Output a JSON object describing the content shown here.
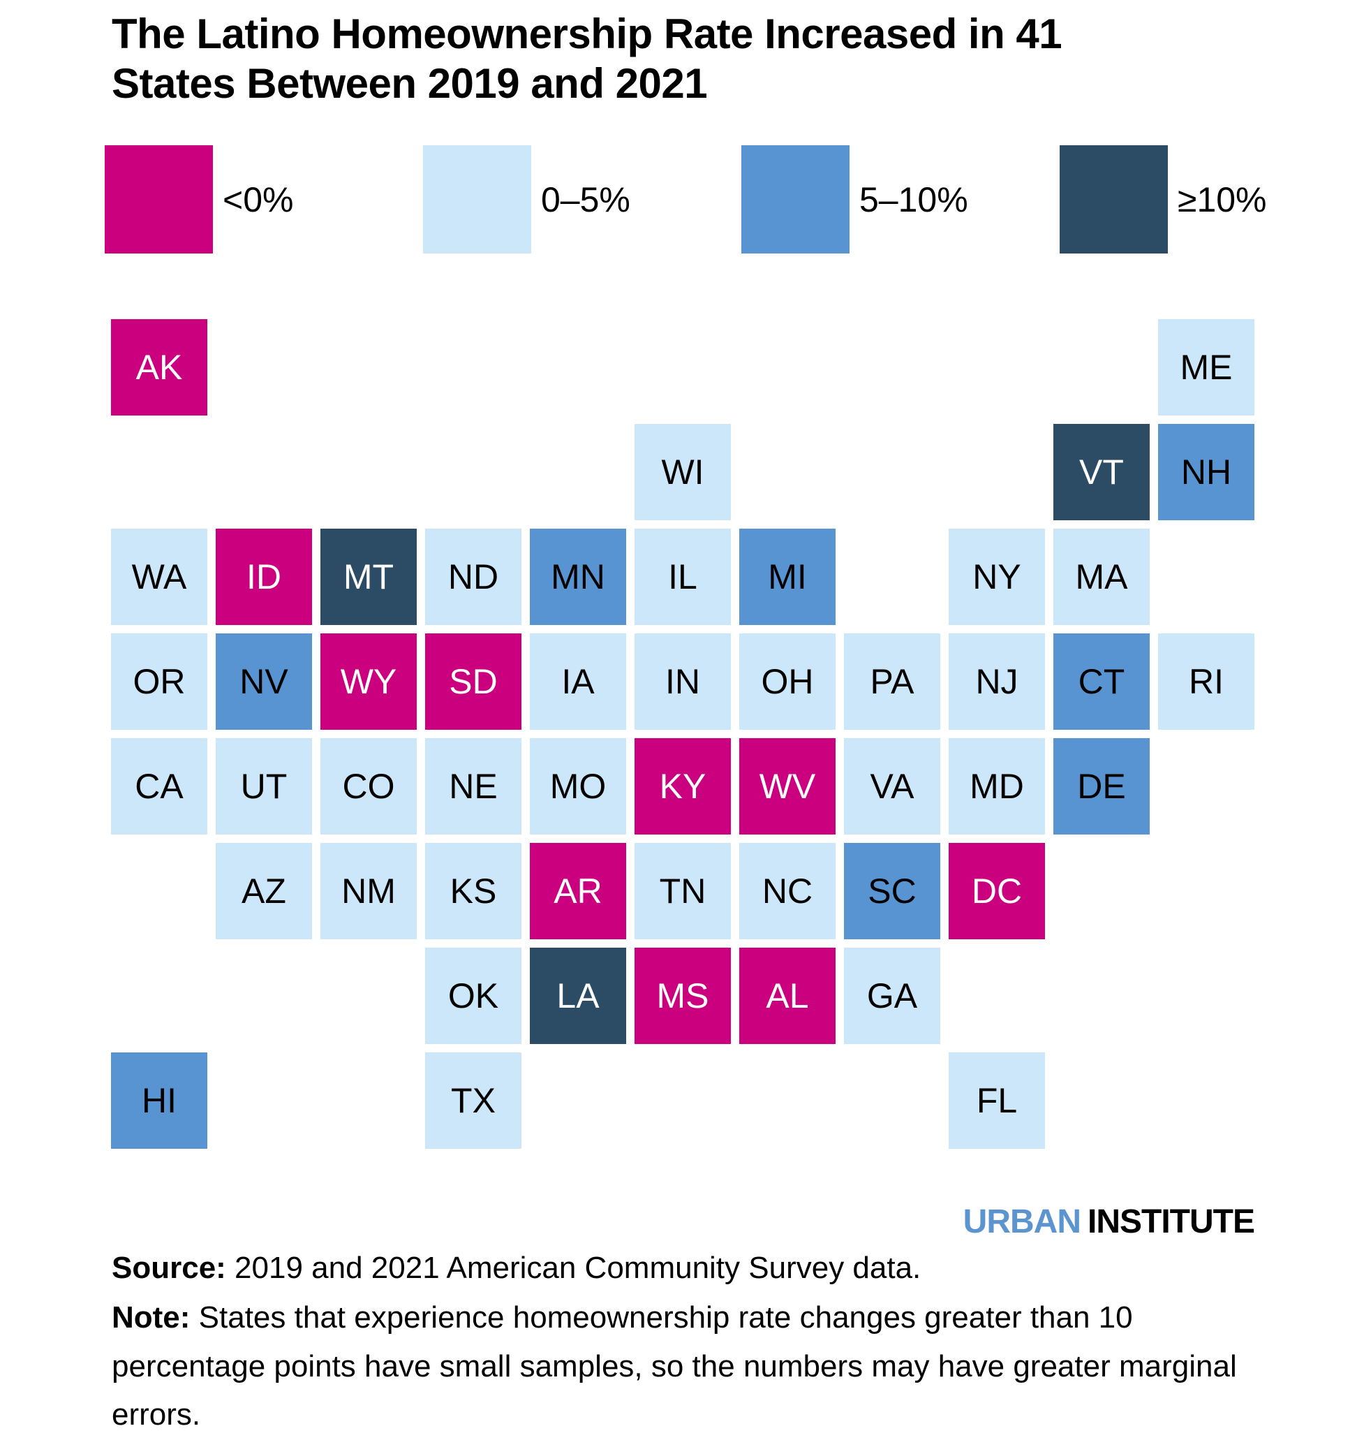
{
  "title": {
    "line1": "The Latino Homeownership Rate Increased in 41",
    "line2": "States Between 2019 and 2021"
  },
  "colors": {
    "neg": {
      "bg": "#CA007E",
      "text": "#FFFFFF"
    },
    "low": {
      "bg": "#CCE7F9",
      "text": "#000000"
    },
    "mid": {
      "bg": "#5894D2",
      "text": "#000000"
    },
    "high": {
      "bg": "#2C4B64",
      "text": "#FFFFFF"
    }
  },
  "chart_data": {
    "type": "heatmap",
    "subtype": "state-tile-grid-map",
    "title": "The Latino Homeownership Rate Increased in 41 States Between 2019 and 2021",
    "legend_position": "top",
    "legend": [
      {
        "label": "<0%",
        "bucket": "neg",
        "color": "#CA007E"
      },
      {
        "label": "0–5%",
        "bucket": "low",
        "color": "#CCE7F9"
      },
      {
        "label": "5–10%",
        "bucket": "mid",
        "color": "#5894D2"
      },
      {
        "label": "≥10%",
        "bucket": "high",
        "color": "#2C4B64"
      }
    ],
    "grid": {
      "columns": 11,
      "rows": 8
    },
    "states": [
      {
        "abbr": "AK",
        "row": 1,
        "col": 1,
        "bucket": "neg"
      },
      {
        "abbr": "ME",
        "row": 1,
        "col": 11,
        "bucket": "low"
      },
      {
        "abbr": "WI",
        "row": 2,
        "col": 6,
        "bucket": "low"
      },
      {
        "abbr": "VT",
        "row": 2,
        "col": 10,
        "bucket": "high"
      },
      {
        "abbr": "NH",
        "row": 2,
        "col": 11,
        "bucket": "mid"
      },
      {
        "abbr": "WA",
        "row": 3,
        "col": 1,
        "bucket": "low"
      },
      {
        "abbr": "ID",
        "row": 3,
        "col": 2,
        "bucket": "neg"
      },
      {
        "abbr": "MT",
        "row": 3,
        "col": 3,
        "bucket": "high"
      },
      {
        "abbr": "ND",
        "row": 3,
        "col": 4,
        "bucket": "low"
      },
      {
        "abbr": "MN",
        "row": 3,
        "col": 5,
        "bucket": "mid"
      },
      {
        "abbr": "IL",
        "row": 3,
        "col": 6,
        "bucket": "low"
      },
      {
        "abbr": "MI",
        "row": 3,
        "col": 7,
        "bucket": "mid"
      },
      {
        "abbr": "NY",
        "row": 3,
        "col": 9,
        "bucket": "low"
      },
      {
        "abbr": "MA",
        "row": 3,
        "col": 10,
        "bucket": "low"
      },
      {
        "abbr": "OR",
        "row": 4,
        "col": 1,
        "bucket": "low"
      },
      {
        "abbr": "NV",
        "row": 4,
        "col": 2,
        "bucket": "mid"
      },
      {
        "abbr": "WY",
        "row": 4,
        "col": 3,
        "bucket": "neg"
      },
      {
        "abbr": "SD",
        "row": 4,
        "col": 4,
        "bucket": "neg"
      },
      {
        "abbr": "IA",
        "row": 4,
        "col": 5,
        "bucket": "low"
      },
      {
        "abbr": "IN",
        "row": 4,
        "col": 6,
        "bucket": "low"
      },
      {
        "abbr": "OH",
        "row": 4,
        "col": 7,
        "bucket": "low"
      },
      {
        "abbr": "PA",
        "row": 4,
        "col": 8,
        "bucket": "low"
      },
      {
        "abbr": "NJ",
        "row": 4,
        "col": 9,
        "bucket": "low"
      },
      {
        "abbr": "CT",
        "row": 4,
        "col": 10,
        "bucket": "mid"
      },
      {
        "abbr": "RI",
        "row": 4,
        "col": 11,
        "bucket": "low"
      },
      {
        "abbr": "CA",
        "row": 5,
        "col": 1,
        "bucket": "low"
      },
      {
        "abbr": "UT",
        "row": 5,
        "col": 2,
        "bucket": "low"
      },
      {
        "abbr": "CO",
        "row": 5,
        "col": 3,
        "bucket": "low"
      },
      {
        "abbr": "NE",
        "row": 5,
        "col": 4,
        "bucket": "low"
      },
      {
        "abbr": "MO",
        "row": 5,
        "col": 5,
        "bucket": "low"
      },
      {
        "abbr": "KY",
        "row": 5,
        "col": 6,
        "bucket": "neg"
      },
      {
        "abbr": "WV",
        "row": 5,
        "col": 7,
        "bucket": "neg"
      },
      {
        "abbr": "VA",
        "row": 5,
        "col": 8,
        "bucket": "low"
      },
      {
        "abbr": "MD",
        "row": 5,
        "col": 9,
        "bucket": "low"
      },
      {
        "abbr": "DE",
        "row": 5,
        "col": 10,
        "bucket": "mid"
      },
      {
        "abbr": "AZ",
        "row": 6,
        "col": 2,
        "bucket": "low"
      },
      {
        "abbr": "NM",
        "row": 6,
        "col": 3,
        "bucket": "low"
      },
      {
        "abbr": "KS",
        "row": 6,
        "col": 4,
        "bucket": "low"
      },
      {
        "abbr": "AR",
        "row": 6,
        "col": 5,
        "bucket": "neg"
      },
      {
        "abbr": "TN",
        "row": 6,
        "col": 6,
        "bucket": "low"
      },
      {
        "abbr": "NC",
        "row": 6,
        "col": 7,
        "bucket": "low"
      },
      {
        "abbr": "SC",
        "row": 6,
        "col": 8,
        "bucket": "mid"
      },
      {
        "abbr": "DC",
        "row": 6,
        "col": 9,
        "bucket": "neg"
      },
      {
        "abbr": "OK",
        "row": 7,
        "col": 4,
        "bucket": "low"
      },
      {
        "abbr": "LA",
        "row": 7,
        "col": 5,
        "bucket": "high"
      },
      {
        "abbr": "MS",
        "row": 7,
        "col": 6,
        "bucket": "neg"
      },
      {
        "abbr": "AL",
        "row": 7,
        "col": 7,
        "bucket": "neg"
      },
      {
        "abbr": "GA",
        "row": 7,
        "col": 8,
        "bucket": "low"
      },
      {
        "abbr": "HI",
        "row": 8,
        "col": 1,
        "bucket": "mid"
      },
      {
        "abbr": "TX",
        "row": 8,
        "col": 4,
        "bucket": "low"
      },
      {
        "abbr": "FL",
        "row": 8,
        "col": 9,
        "bucket": "low"
      }
    ]
  },
  "footer": {
    "wordmark": {
      "urban": "URBAN",
      "institute": "INSTITUTE"
    },
    "source_label": "Source:",
    "source_text": " 2019 and 2021 American Community Survey data.",
    "note_label": "Note:",
    "note_text": " States that experience homeownership rate changes greater than 10 percentage points have small samples, so the numbers may have greater marginal errors."
  }
}
